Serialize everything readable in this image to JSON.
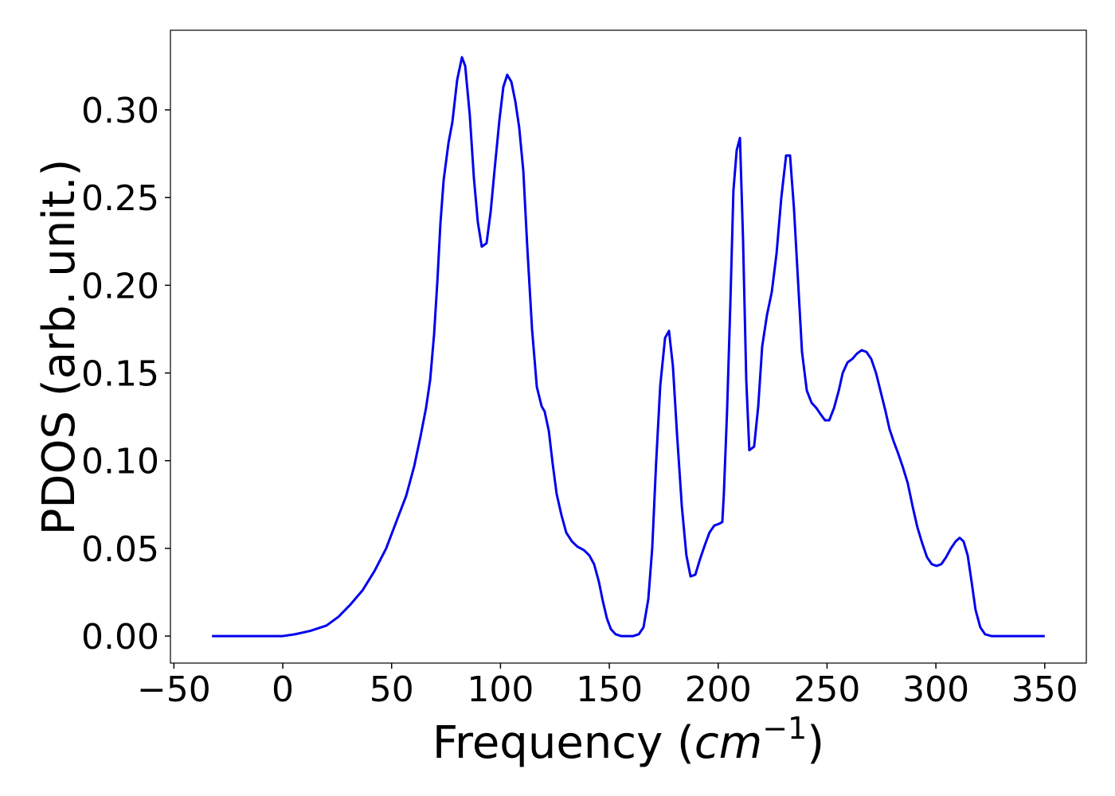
{
  "chart_data": {
    "type": "line",
    "xlabel": [
      "Frequency (",
      "cm",
      "−1",
      ")"
    ],
    "ylabel": "PDOS (arb. unit.)",
    "xlim": [
      -51.6,
      369.1
    ],
    "ylim": [
      -0.0154,
      0.3454
    ],
    "xticks": [
      {
        "value": -50,
        "label": "−50"
      },
      0,
      50,
      100,
      150,
      200,
      250,
      300,
      350
    ],
    "yticks": [
      {
        "value": 0,
        "label": "0.00"
      },
      {
        "value": 0.05,
        "label": "0.05"
      },
      {
        "value": 0.1,
        "label": "0.10"
      },
      {
        "value": 0.15,
        "label": "0.15"
      },
      {
        "value": 0.2,
        "label": "0.20"
      },
      {
        "value": 0.25,
        "label": "0.25"
      },
      {
        "value": 0.3,
        "label": "0.30"
      }
    ],
    "grid": false,
    "series": [
      {
        "color": "#0000ee",
        "x": [
          -32.5,
          0,
          5.5,
          12.8,
          20.1,
          25.6,
          31.1,
          36.6,
          42.1,
          47.5,
          53.0,
          56.7,
          60.4,
          63.3,
          65.8,
          67.7,
          69.5,
          71.0,
          72.4,
          73.9,
          76.1,
          77.9,
          80.1,
          82.3,
          83.8,
          85.9,
          87.8,
          89.6,
          91.4,
          93.6,
          95.5,
          97.3,
          99.5,
          101.3,
          103.1,
          105.0,
          106.8,
          108.6,
          110.5,
          112.3,
          114.5,
          116.7,
          118.9,
          120.3,
          122.2,
          124.0,
          125.8,
          128.0,
          130.2,
          132.8,
          135.3,
          138.3,
          140.8,
          143.0,
          145.2,
          147.0,
          148.9,
          150.7,
          152.9,
          155.4,
          160.9,
          163.5,
          165.7,
          167.9,
          169.7,
          171.5,
          173.4,
          175.6,
          177.4,
          179.2,
          181.1,
          183.3,
          185.4,
          187.3,
          189.5,
          191.7,
          193.9,
          196.0,
          198.2,
          200.4,
          201.9,
          202.6,
          204.1,
          205.6,
          207.0,
          208.5,
          210.0,
          211.4,
          212.9,
          214.3,
          216.5,
          218.4,
          220.2,
          222.4,
          224.6,
          226.8,
          229.0,
          231.2,
          233.0,
          234.8,
          236.7,
          238.5,
          240.7,
          242.9,
          245.1,
          247.3,
          249.1,
          251.0,
          253.2,
          255.4,
          257.2,
          259.4,
          261.6,
          263.7,
          265.9,
          268.1,
          270.3,
          272.5,
          274.7,
          276.9,
          278.7,
          280.6,
          282.7,
          284.9,
          287.1,
          289.3,
          291.5,
          293.7,
          295.9,
          298.1,
          300.3,
          302.5,
          304.7,
          306.9,
          309.1,
          310.9,
          312.7,
          314.6,
          316.4,
          318.2,
          320.4,
          322.6,
          325.5,
          350
        ],
        "values": [
          0,
          0,
          0.001,
          0.003,
          0.006,
          0.011,
          0.018,
          0.026,
          0.037,
          0.05,
          0.068,
          0.08,
          0.097,
          0.114,
          0.13,
          0.146,
          0.172,
          0.202,
          0.235,
          0.26,
          0.281,
          0.293,
          0.317,
          0.33,
          0.325,
          0.297,
          0.261,
          0.236,
          0.222,
          0.224,
          0.242,
          0.266,
          0.294,
          0.313,
          0.32,
          0.316,
          0.305,
          0.29,
          0.265,
          0.222,
          0.175,
          0.142,
          0.131,
          0.128,
          0.117,
          0.098,
          0.081,
          0.069,
          0.059,
          0.054,
          0.051,
          0.049,
          0.046,
          0.041,
          0.031,
          0.02,
          0.01,
          0.004,
          0.001,
          0,
          0,
          0.001,
          0.005,
          0.021,
          0.05,
          0.099,
          0.143,
          0.17,
          0.174,
          0.154,
          0.115,
          0.074,
          0.046,
          0.034,
          0.035,
          0.044,
          0.052,
          0.059,
          0.063,
          0.064,
          0.065,
          0.081,
          0.129,
          0.19,
          0.254,
          0.277,
          0.284,
          0.227,
          0.146,
          0.106,
          0.108,
          0.131,
          0.165,
          0.183,
          0.196,
          0.218,
          0.25,
          0.274,
          0.274,
          0.244,
          0.202,
          0.162,
          0.14,
          0.133,
          0.13,
          0.126,
          0.123,
          0.123,
          0.13,
          0.14,
          0.15,
          0.156,
          0.158,
          0.161,
          0.163,
          0.162,
          0.158,
          0.15,
          0.139,
          0.128,
          0.118,
          0.111,
          0.104,
          0.096,
          0.087,
          0.074,
          0.062,
          0.053,
          0.045,
          0.041,
          0.04,
          0.041,
          0.045,
          0.05,
          0.054,
          0.056,
          0.054,
          0.046,
          0.031,
          0.015,
          0.005,
          0.001,
          0,
          0
        ]
      }
    ]
  }
}
